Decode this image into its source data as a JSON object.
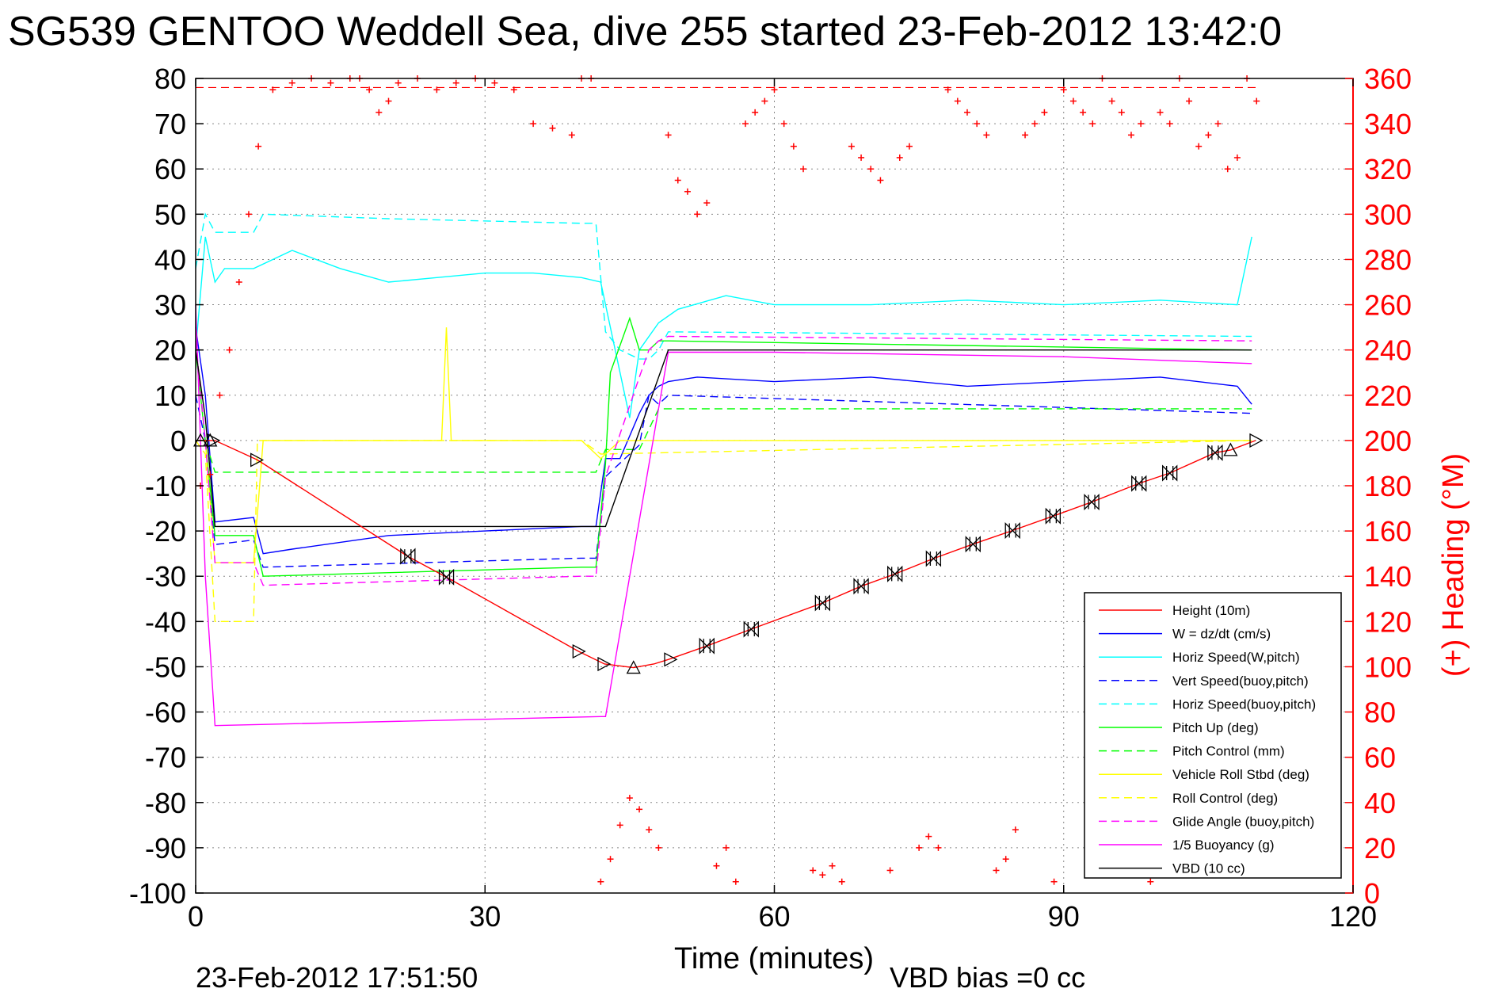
{
  "chart_data": {
    "type": "line",
    "title": "SG539 GENTOO Weddell Sea, dive 255 started 23-Feb-2012 13:42:0",
    "xlabel": "Time (minutes)",
    "ylabel_right": "(+) Heading (°M)",
    "footer_left": "23-Feb-2012 17:51:50",
    "footer_right": "VBD bias =0 cc",
    "xlim": [
      0,
      120
    ],
    "ylim": [
      -100,
      80
    ],
    "y2lim": [
      0,
      360
    ],
    "xticks": [
      0,
      30,
      60,
      90,
      120
    ],
    "yticks": [
      -100,
      -90,
      -80,
      -70,
      -60,
      -50,
      -40,
      -30,
      -20,
      -10,
      0,
      10,
      20,
      30,
      40,
      50,
      60,
      70,
      80
    ],
    "y2ticks": [
      0,
      20,
      40,
      60,
      80,
      100,
      120,
      140,
      160,
      180,
      200,
      220,
      240,
      260,
      280,
      300,
      320,
      340,
      360
    ],
    "grid": true,
    "legend_position": "bottom-right",
    "colors": {
      "axis_left": "#000000",
      "axis_right": "#ff0000"
    },
    "series": [
      {
        "name": "Height (10m)",
        "color": "#ff0000",
        "dash": "solid",
        "x": [
          0,
          1,
          2,
          6.4,
          22,
          26,
          39.7,
          42.4,
          45.4,
          47.5,
          49,
          53,
          57.6,
          65,
          69,
          72.5,
          76.5,
          80.6,
          84.7,
          88.9,
          92.9,
          97.8,
          101,
          105.7,
          107.3,
          109.9
        ],
        "y": [
          0,
          0,
          0,
          -4.3,
          -25.6,
          -30.2,
          -46.6,
          -49.4,
          -50.2,
          -49.4,
          -48.4,
          -45.4,
          -41.7,
          -35.9,
          -32.2,
          -29.5,
          -26.1,
          -22.9,
          -19.9,
          -16.7,
          -13.6,
          -9.5,
          -7.2,
          -2.7,
          -2.1,
          0
        ]
      },
      {
        "name": "W = dz/dt (cm/s)",
        "color": "#0000ff",
        "dash": "solid",
        "x": [
          0,
          1,
          2,
          6,
          7,
          10,
          20,
          30,
          40,
          41.5,
          42.5,
          44,
          46,
          47,
          48,
          49,
          52,
          60,
          70,
          80,
          90,
          100,
          108,
          109.5
        ],
        "y": [
          25,
          10,
          -18,
          -17,
          -25,
          -24,
          -21,
          -20,
          -19,
          -19,
          -4,
          -4,
          6,
          10,
          12,
          13,
          14,
          13,
          14,
          12,
          13,
          14,
          12,
          8
        ]
      },
      {
        "name": "Horiz Speed(W,pitch)",
        "color": "#00ffff",
        "dash": "solid",
        "x": [
          0,
          1,
          2,
          3,
          6,
          10,
          15,
          20,
          25,
          30,
          35,
          40,
          42,
          44,
          45,
          46,
          48,
          50,
          55,
          60,
          70,
          80,
          90,
          100,
          108,
          109.5
        ],
        "y": [
          20,
          45,
          35,
          38,
          38,
          42,
          38,
          35,
          36,
          37,
          37,
          36,
          35,
          15,
          5,
          20,
          26,
          29,
          32,
          30,
          30,
          31,
          30,
          31,
          30,
          45
        ]
      },
      {
        "name": "Vert Speed(buoy,pitch)",
        "color": "#0000ff",
        "dash": "dashed",
        "x": [
          0,
          1,
          2,
          6,
          7,
          40,
          41.5,
          42.5,
          46,
          47,
          48,
          49,
          109.5
        ],
        "y": [
          10,
          0,
          -23,
          -22,
          -28,
          -26,
          -26,
          -8,
          -1,
          10,
          8,
          10,
          6
        ]
      },
      {
        "name": "Horiz Speed(buoy,pitch)",
        "color": "#00ffff",
        "dash": "dashed",
        "x": [
          0,
          1,
          2,
          6,
          7,
          20,
          40,
          41.5,
          42.5,
          44,
          46,
          47,
          48,
          49,
          109.5
        ],
        "y": [
          38,
          50,
          46,
          46,
          50,
          49,
          48,
          48,
          24,
          20,
          18,
          18,
          20,
          24,
          23
        ]
      },
      {
        "name": "Pitch Up (deg)",
        "color": "#00ff00",
        "dash": "solid",
        "x": [
          0,
          1,
          2,
          6,
          7,
          40,
          41.5,
          42.5,
          43,
          45,
          46,
          47,
          48,
          49,
          109.5
        ],
        "y": [
          20,
          0,
          -21,
          -21,
          -30,
          -28,
          -28,
          -5,
          15,
          27,
          20,
          20,
          22,
          22,
          20
        ]
      },
      {
        "name": "Pitch Control (mm)",
        "color": "#00ff00",
        "dash": "dashed",
        "x": [
          0,
          1,
          2,
          40,
          41.5,
          42.5,
          46,
          48,
          49,
          109.5
        ],
        "y": [
          0,
          0,
          -7,
          -7,
          -7,
          -2,
          -2,
          7,
          7,
          7
        ]
      },
      {
        "name": "Vehicle Roll Stbd (deg)",
        "color": "#ffff00",
        "dash": "solid",
        "x": [
          0,
          1,
          2,
          6,
          7,
          25.5,
          26,
          26.5,
          40,
          42,
          44,
          109.5
        ],
        "y": [
          0,
          0,
          -27,
          -27,
          0,
          0,
          25,
          0,
          0,
          -4,
          0,
          0
        ]
      },
      {
        "name": "Roll Control (deg)",
        "color": "#ffff00",
        "dash": "dashed",
        "x": [
          0,
          1,
          2,
          6,
          6.4,
          7,
          22,
          40,
          42,
          109.5
        ],
        "y": [
          0,
          -3,
          -40,
          -40,
          0,
          0,
          0,
          0,
          -3,
          0
        ]
      },
      {
        "name": "Glide Angle (buoy,pitch)",
        "color": "#ff00ff",
        "dash": "dashed",
        "x": [
          0,
          1,
          2,
          6,
          7,
          40,
          41.5,
          42.5,
          46,
          47,
          48,
          49,
          109.5
        ],
        "y": [
          22,
          0,
          -27,
          -27,
          -32,
          -30,
          -30,
          -8,
          14,
          20,
          22,
          23,
          22
        ]
      },
      {
        "name": "1/5 Buoyancy (g)",
        "color": "#ff00ff",
        "dash": "solid",
        "x": [
          0,
          1,
          2,
          42,
          42.5,
          49,
          60,
          90,
          109.5
        ],
        "y": [
          30,
          -30,
          -63,
          -61,
          -61,
          19.5,
          19.5,
          18.5,
          17
        ]
      },
      {
        "name": "VBD (10 cc)",
        "color": "#000000",
        "dash": "solid",
        "x": [
          0,
          1,
          2,
          42,
          42.5,
          49,
          109.5
        ],
        "y": [
          20,
          5,
          -19,
          -19,
          -19,
          20,
          20
        ]
      }
    ],
    "heading": {
      "color": "#ff0000",
      "marker": "+",
      "reference_line": 356,
      "x": [
        0.5,
        1.5,
        2.5,
        3.5,
        4.5,
        5.5,
        6.5,
        8,
        10,
        12,
        14,
        16,
        17,
        18,
        19,
        20,
        21,
        23,
        25,
        27,
        29,
        31,
        33,
        35,
        37,
        39,
        40,
        41,
        42,
        43,
        44,
        45,
        46,
        47,
        48,
        49,
        50,
        51,
        52,
        53,
        54,
        55,
        56,
        57,
        58,
        59,
        60,
        61,
        62,
        63,
        64,
        65,
        66,
        67,
        68,
        69,
        70,
        71,
        72,
        73,
        74,
        75,
        76,
        77,
        78,
        79,
        80,
        81,
        82,
        83,
        84,
        85,
        86,
        87,
        88,
        89,
        90,
        91,
        92,
        93,
        94,
        95,
        96,
        97,
        98,
        99,
        100,
        101,
        102,
        103,
        104,
        105,
        106,
        107,
        108,
        109,
        110
      ],
      "y": [
        180,
        185,
        220,
        240,
        270,
        300,
        330,
        355,
        358,
        360,
        358,
        362,
        360,
        355,
        345,
        350,
        358,
        362,
        355,
        358,
        360,
        358,
        355,
        340,
        338,
        335,
        360,
        360,
        5,
        15,
        30,
        42,
        37,
        28,
        20,
        335,
        315,
        310,
        300,
        305,
        12,
        20,
        5,
        340,
        345,
        350,
        355,
        340,
        330,
        320,
        10,
        8,
        12,
        5,
        330,
        325,
        320,
        315,
        10,
        325,
        330,
        20,
        25,
        20,
        355,
        350,
        345,
        340,
        335,
        10,
        15,
        28,
        335,
        340,
        345,
        5,
        355,
        350,
        345,
        340,
        360,
        350,
        345,
        335,
        340,
        5,
        345,
        340,
        360,
        350,
        330,
        335,
        340,
        320,
        325,
        360,
        350
      ]
    },
    "black_markers": [
      {
        "x": 0.5,
        "y": 0,
        "shape": "tri-up"
      },
      {
        "x": 1.5,
        "y": 0,
        "shape": "tri-up"
      },
      {
        "x": 1.8,
        "y": 0,
        "shape": "tri-right"
      },
      {
        "x": 6.3,
        "y": -4.3,
        "shape": "tri-right"
      },
      {
        "x": 22,
        "y": -25.6,
        "shape": "hourglass"
      },
      {
        "x": 26,
        "y": -30.2,
        "shape": "hourglass"
      },
      {
        "x": 39.7,
        "y": -46.6,
        "shape": "tri-right"
      },
      {
        "x": 42.3,
        "y": -49.4,
        "shape": "tri-right"
      },
      {
        "x": 45.4,
        "y": -50.2,
        "shape": "tri-up"
      },
      {
        "x": 49.2,
        "y": -48.4,
        "shape": "tri-right"
      },
      {
        "x": 53,
        "y": -45.4,
        "shape": "hourglass"
      },
      {
        "x": 57.6,
        "y": -41.7,
        "shape": "hourglass"
      },
      {
        "x": 65,
        "y": -35.9,
        "shape": "hourglass"
      },
      {
        "x": 69,
        "y": -32.2,
        "shape": "hourglass"
      },
      {
        "x": 72.5,
        "y": -29.5,
        "shape": "hourglass"
      },
      {
        "x": 76.5,
        "y": -26.1,
        "shape": "hourglass"
      },
      {
        "x": 80.6,
        "y": -22.9,
        "shape": "hourglass"
      },
      {
        "x": 84.7,
        "y": -19.9,
        "shape": "hourglass"
      },
      {
        "x": 88.9,
        "y": -16.7,
        "shape": "hourglass"
      },
      {
        "x": 92.9,
        "y": -13.6,
        "shape": "hourglass"
      },
      {
        "x": 97.8,
        "y": -9.5,
        "shape": "hourglass"
      },
      {
        "x": 101,
        "y": -7.2,
        "shape": "hourglass"
      },
      {
        "x": 105.7,
        "y": -2.7,
        "shape": "hourglass"
      },
      {
        "x": 107.3,
        "y": -2.1,
        "shape": "tri-up"
      },
      {
        "x": 109.9,
        "y": 0,
        "shape": "tri-right"
      }
    ]
  }
}
